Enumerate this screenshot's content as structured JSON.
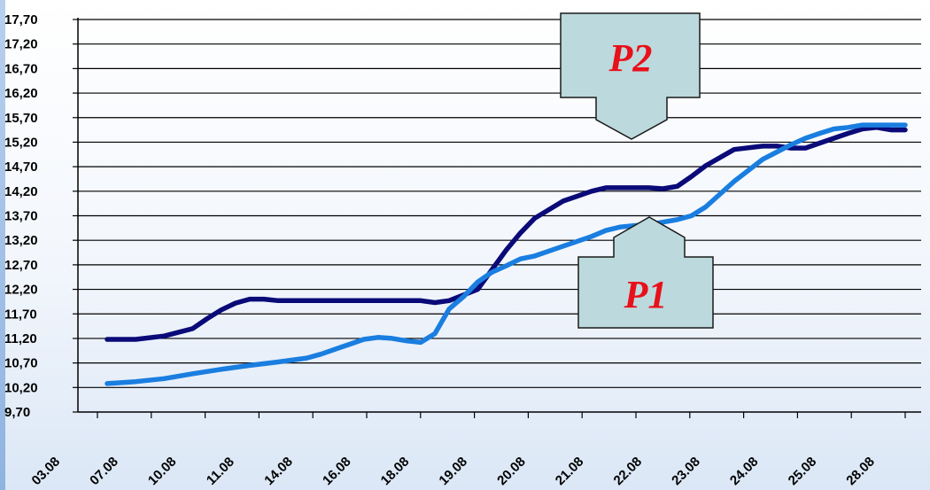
{
  "chart_data": {
    "type": "line",
    "title": "",
    "xlabel": "",
    "ylabel": "",
    "x_tick_labels": [
      "03.08",
      "07.08",
      "10.08",
      "11.08",
      "14.08",
      "16.08",
      "18.08",
      "19.08",
      "20.08",
      "21.08",
      "22.08",
      "23.08",
      "24.08",
      "25.08",
      "28.08"
    ],
    "y_tick_labels": [
      "9,70",
      "10,20",
      "10,70",
      "11,20",
      "11,70",
      "12,20",
      "12,70",
      "13,20",
      "13,70",
      "14,20",
      "14,70",
      "15,20",
      "15,70",
      "16,20",
      "16,70",
      "17,20",
      "17,70"
    ],
    "ylim": [
      9.7,
      17.7
    ],
    "xlim": [
      0,
      28
    ],
    "grid": true,
    "series": [
      {
        "name": "P2",
        "color": "#0a0a78",
        "x": [
          0,
          1,
          2,
          3,
          3.5,
          4,
          4.5,
          5,
          5.5,
          6,
          7,
          8,
          9,
          10,
          11,
          11.5,
          12,
          13,
          13.5,
          14,
          14.5,
          15,
          16,
          17,
          17.5,
          18,
          19,
          19.5,
          20,
          20.5,
          21,
          22,
          23,
          23.5,
          24,
          24.5,
          25,
          25.5,
          26,
          26.5,
          27,
          27.5,
          28
        ],
        "y": [
          11.18,
          11.18,
          11.25,
          11.4,
          11.6,
          11.78,
          11.92,
          12.0,
          12.0,
          11.97,
          11.97,
          11.97,
          11.97,
          11.97,
          11.97,
          11.93,
          11.97,
          12.2,
          12.6,
          13.0,
          13.35,
          13.65,
          14.0,
          14.2,
          14.27,
          14.27,
          14.27,
          14.25,
          14.3,
          14.5,
          14.72,
          15.05,
          15.12,
          15.12,
          15.08,
          15.08,
          15.18,
          15.28,
          15.38,
          15.47,
          15.5,
          15.45,
          15.45
        ]
      },
      {
        "name": "P1",
        "color": "#1a7ee0",
        "x": [
          0,
          1,
          2,
          3,
          4,
          5,
          6,
          7,
          7.5,
          8,
          8.5,
          9,
          9.5,
          10,
          10.5,
          11,
          11.5,
          12,
          12.5,
          13,
          13.5,
          14,
          14.5,
          15,
          16,
          17,
          17.5,
          18,
          18.5,
          19,
          19.5,
          20,
          20.5,
          21,
          22,
          23,
          23.5,
          24,
          24.5,
          25,
          25.5,
          26,
          26.5,
          27,
          28
        ],
        "y": [
          10.28,
          10.32,
          10.38,
          10.48,
          10.57,
          10.65,
          10.72,
          10.8,
          10.88,
          10.98,
          11.08,
          11.18,
          11.22,
          11.2,
          11.15,
          11.12,
          11.3,
          11.8,
          12.05,
          12.35,
          12.55,
          12.68,
          12.82,
          12.88,
          13.08,
          13.28,
          13.4,
          13.47,
          13.5,
          13.52,
          13.57,
          13.62,
          13.7,
          13.88,
          14.4,
          14.85,
          15.0,
          15.15,
          15.28,
          15.38,
          15.47,
          15.5,
          15.55,
          15.55,
          15.55
        ]
      }
    ],
    "annotations": [
      {
        "label": "P2",
        "arrow_direction": "down",
        "points_to_series": "P2"
      },
      {
        "label": "P1",
        "arrow_direction": "up",
        "points_to_series": "P1"
      }
    ]
  }
}
